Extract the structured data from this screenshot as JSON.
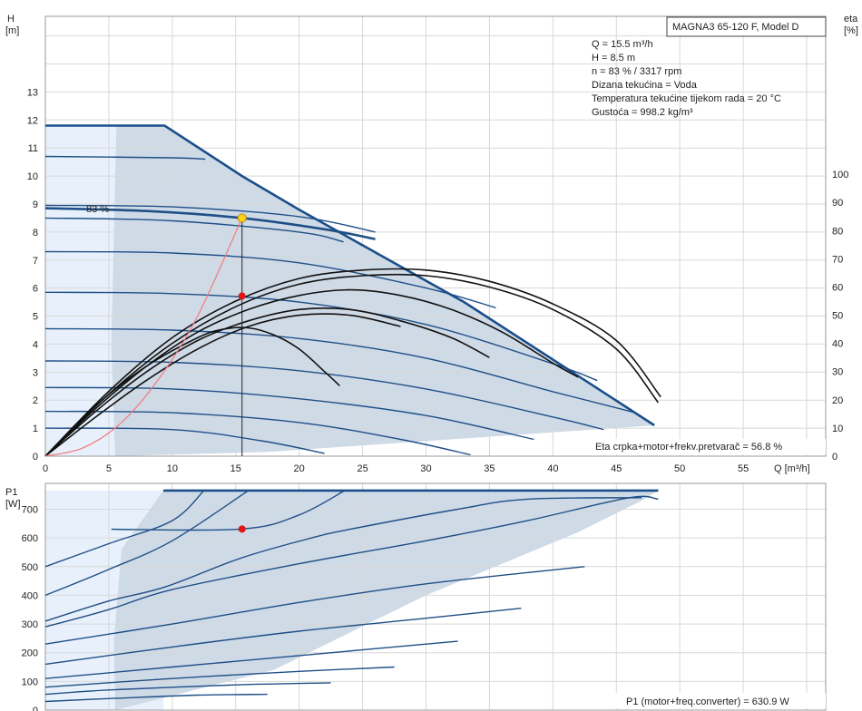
{
  "top": {
    "y_label_line1": "H",
    "y_label_line2": "[m]",
    "right_label_line1": "eta",
    "right_label_line2": "[%]",
    "x_label": "Q [m³/h]",
    "x_ticks": [
      "0",
      "5",
      "10",
      "15",
      "20",
      "25",
      "30",
      "35",
      "40",
      "45",
      "50",
      "55"
    ],
    "y_ticks": [
      "0",
      "1",
      "2",
      "3",
      "4",
      "5",
      "6",
      "7",
      "8",
      "9",
      "10",
      "11",
      "12",
      "13"
    ],
    "eta_ticks": [
      "0",
      "10",
      "20",
      "30",
      "40",
      "50",
      "60",
      "70",
      "80",
      "90",
      "100"
    ],
    "model_title": "MAGNA3 65-120 F, Model D",
    "info_lines": [
      "Q = 15.5 m³/h",
      "H = 8.5 m",
      "n = 83 % / 3317 rpm",
      "Dizana tekućina = Voda",
      "Temperatura tekućine tijekom rada = 20 °C",
      "Gustoća = 998.2 kg/m³"
    ],
    "speed_label": "83 %",
    "efficiency_note": "Eta crpka+motor+frekv.pretvarač = 56.8 %"
  },
  "bottom": {
    "y_label_line1": "P1",
    "y_label_line2": "[W]",
    "y_ticks": [
      "0",
      "100",
      "200",
      "300",
      "400",
      "500",
      "600",
      "700"
    ],
    "power_note": "P1 (motor+freq.converter) = 630.9 W"
  },
  "chart_data": [
    {
      "type": "line",
      "panel": "head",
      "xlabel": "Q [m³/h]",
      "ylabel": "H [m]",
      "xlim": [
        0,
        61.5
      ],
      "ylim": [
        0,
        15.7
      ],
      "y2label": "eta [%]",
      "y2lim": [
        0,
        156
      ],
      "operating_region": [
        [
          0,
          11.8
        ],
        [
          9.4,
          11.8
        ],
        [
          15.5,
          10.0
        ],
        [
          20,
          8.8
        ],
        [
          33,
          5.5
        ],
        [
          48,
          1.1
        ],
        [
          17.5,
          0.15
        ],
        [
          5.5,
          0
        ],
        [
          5.2,
          4
        ],
        [
          5.6,
          11.8
        ]
      ],
      "pump_curves": [
        {
          "name": "83 %",
          "points": [
            [
              0,
              8.85
            ],
            [
              8,
              8.75
            ],
            [
              15.5,
              8.5
            ],
            [
              22,
              8.1
            ],
            [
              26,
              7.75
            ]
          ]
        },
        {
          "points": [
            [
              0,
              8.95
            ],
            [
              10,
              8.9
            ],
            [
              20,
              8.55
            ],
            [
              26,
              8.0
            ]
          ]
        },
        {
          "points": [
            [
              0,
              8.5
            ],
            [
              10,
              8.4
            ],
            [
              20,
              8.0
            ],
            [
              23.5,
              7.65
            ]
          ]
        },
        {
          "points": [
            [
              0,
              10.7
            ],
            [
              10,
              10.65
            ],
            [
              12.6,
              10.6
            ]
          ]
        },
        {
          "points": [
            [
              0,
              7.3
            ],
            [
              10,
              7.25
            ],
            [
              20,
              6.9
            ],
            [
              30,
              6.0
            ],
            [
              35.5,
              5.3
            ]
          ]
        },
        {
          "points": [
            [
              0,
              5.85
            ],
            [
              10,
              5.8
            ],
            [
              20,
              5.5
            ],
            [
              30,
              4.7
            ],
            [
              40,
              3.3
            ],
            [
              43.5,
              2.7
            ]
          ]
        },
        {
          "points": [
            [
              0,
              4.55
            ],
            [
              10,
              4.5
            ],
            [
              20,
              4.2
            ],
            [
              30,
              3.5
            ],
            [
              40,
              2.3
            ],
            [
              46.5,
              1.55
            ]
          ]
        },
        {
          "points": [
            [
              0,
              3.4
            ],
            [
              10,
              3.35
            ],
            [
              20,
              3.05
            ],
            [
              30,
              2.4
            ],
            [
              40,
              1.4
            ],
            [
              44,
              0.95
            ]
          ]
        },
        {
          "points": [
            [
              0,
              2.45
            ],
            [
              10,
              2.4
            ],
            [
              20,
              2.05
            ],
            [
              30,
              1.45
            ],
            [
              38.5,
              0.6
            ]
          ]
        },
        {
          "points": [
            [
              0,
              1.6
            ],
            [
              10,
              1.55
            ],
            [
              20,
              1.2
            ],
            [
              28,
              0.6
            ],
            [
              33.5,
              0.05
            ]
          ]
        },
        {
          "points": [
            [
              0,
              1.0
            ],
            [
              10,
              0.95
            ],
            [
              17,
              0.55
            ],
            [
              22,
              0.1
            ]
          ]
        }
      ],
      "max_curve": [
        [
          0,
          11.8
        ],
        [
          9.4,
          11.8
        ],
        [
          15.5,
          10.0
        ],
        [
          20,
          8.8
        ],
        [
          33,
          5.5
        ],
        [
          48,
          1.1
        ]
      ],
      "efficiency_curves": [
        {
          "points": [
            [
              0,
              0
            ],
            [
              4,
              14
            ],
            [
              8,
              27
            ],
            [
              12,
              38
            ],
            [
              16,
              46
            ],
            [
              20,
              50
            ],
            [
              24,
              50
            ],
            [
              28,
              46
            ]
          ],
          "peak": 50
        },
        {
          "points": [
            [
              0,
              0
            ],
            [
              4,
              16
            ],
            [
              8,
              30
            ],
            [
              12,
              41
            ],
            [
              16,
              48
            ],
            [
              20,
              52
            ],
            [
              24,
              52
            ],
            [
              28,
              48
            ],
            [
              32,
              42
            ],
            [
              35,
              35
            ]
          ],
          "peak": 53
        },
        {
          "points": [
            [
              0,
              0
            ],
            [
              4,
              17
            ],
            [
              8,
              32
            ],
            [
              12,
              44
            ],
            [
              16,
              52
            ],
            [
              20,
              57
            ],
            [
              24,
              59
            ],
            [
              28,
              57
            ],
            [
              32,
              52
            ],
            [
              36,
              44
            ],
            [
              40,
              33
            ],
            [
              42,
              28
            ]
          ],
          "peak": 60
        },
        {
          "points": [
            [
              0,
              0
            ],
            [
              5,
              22
            ],
            [
              10,
              40
            ],
            [
              15,
              53
            ],
            [
              20,
              61
            ],
            [
              25,
              64
            ],
            [
              30,
              64
            ],
            [
              35,
              60
            ],
            [
              40,
              52
            ],
            [
              45,
              38
            ],
            [
              48.3,
              19
            ]
          ],
          "peak": 65
        },
        {
          "points": [
            [
              0,
              0
            ],
            [
              5,
              23
            ],
            [
              10,
              42
            ],
            [
              15,
              55
            ],
            [
              20,
              63
            ],
            [
              25,
              66
            ],
            [
              30,
              66
            ],
            [
              35,
              62
            ],
            [
              40,
              54
            ],
            [
              45,
              41
            ],
            [
              48.5,
              21
            ]
          ],
          "peak": 67
        },
        {
          "points": [
            [
              0,
              0
            ],
            [
              4,
              18
            ],
            [
              8,
              32
            ],
            [
              12,
              42
            ],
            [
              14,
              45
            ],
            [
              16,
              45.5
            ],
            [
              18,
              43
            ],
            [
              20,
              38
            ],
            [
              22,
              30
            ],
            [
              23.2,
              25
            ]
          ],
          "peak": 46
        }
      ],
      "system_curve": [
        [
          0,
          0
        ],
        [
          3,
          0.3
        ],
        [
          6,
          1.2
        ],
        [
          9,
          2.8
        ],
        [
          12,
          5.0
        ],
        [
          15.5,
          8.5
        ]
      ],
      "operating_point": {
        "Q": 15.5,
        "H": 8.5
      },
      "efficiency_point": {
        "Q": 15.5,
        "eta": 56.8
      }
    },
    {
      "type": "line",
      "panel": "power",
      "ylabel": "P1 [W]",
      "xlim": [
        0,
        61.5
      ],
      "ylim": [
        0,
        790
      ],
      "operating_region": [
        [
          9.3,
          765
        ],
        [
          48.3,
          765
        ],
        [
          47,
          730
        ],
        [
          42,
          620
        ],
        [
          30,
          400
        ],
        [
          18,
          140
        ],
        [
          5.5,
          0
        ],
        [
          5.4,
          240
        ],
        [
          6,
          560
        ],
        [
          9.3,
          765
        ]
      ],
      "max_power": 765,
      "power_curves": [
        {
          "points": [
            [
              0,
              30
            ],
            [
              5,
              40
            ],
            [
              12,
              52
            ],
            [
              17.5,
              55
            ]
          ]
        },
        {
          "points": [
            [
              0,
              55
            ],
            [
              5,
              70
            ],
            [
              15,
              88
            ],
            [
              22.5,
              95
            ]
          ]
        },
        {
          "points": [
            [
              0,
              80
            ],
            [
              10,
              110
            ],
            [
              20,
              135
            ],
            [
              27.5,
              150
            ]
          ]
        },
        {
          "points": [
            [
              0,
              110
            ],
            [
              10,
              150
            ],
            [
              20,
              190
            ],
            [
              32.5,
              240
            ]
          ]
        },
        {
          "points": [
            [
              0,
              160
            ],
            [
              10,
              220
            ],
            [
              20,
              275
            ],
            [
              30,
              320
            ],
            [
              37.5,
              355
            ]
          ]
        },
        {
          "points": [
            [
              0,
              230
            ],
            [
              10,
              300
            ],
            [
              20,
              375
            ],
            [
              30,
              440
            ],
            [
              42.5,
              500
            ]
          ]
        },
        {
          "points": [
            [
              0,
              290
            ],
            [
              5,
              350
            ],
            [
              10,
              420
            ],
            [
              20,
              510
            ],
            [
              30,
              590
            ],
            [
              38,
              660
            ],
            [
              46,
              740
            ],
            [
              48.3,
              735
            ]
          ]
        },
        {
          "points": [
            [
              0,
              310
            ],
            [
              5,
              380
            ],
            [
              9.5,
              430
            ],
            [
              15.5,
              531
            ],
            [
              21,
              600
            ],
            [
              24,
              630
            ],
            [
              32.5,
              700
            ],
            [
              38,
              735
            ],
            [
              47,
              740
            ]
          ]
        },
        {
          "points": [
            [
              5.2,
              630
            ],
            [
              15.5,
              630.9
            ],
            [
              20,
              680
            ],
            [
              23.6,
              765
            ]
          ]
        },
        {
          "points": [
            [
              0,
              500
            ],
            [
              5,
              580
            ],
            [
              10,
              660
            ],
            [
              12.5,
              765
            ]
          ]
        },
        {
          "points": [
            [
              0,
              400
            ],
            [
              5,
              490
            ],
            [
              10,
              590
            ],
            [
              16,
              765
            ]
          ]
        }
      ],
      "operating_point": {
        "Q": 15.5,
        "P1": 630.9
      }
    }
  ]
}
